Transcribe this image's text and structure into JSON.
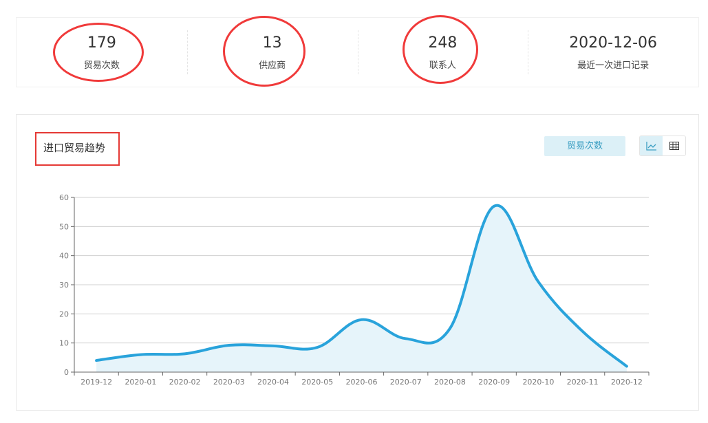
{
  "stats": [
    {
      "value": "179",
      "label": "贸易次数"
    },
    {
      "value": "13",
      "label": "供应商"
    },
    {
      "value": "248",
      "label": "联系人"
    },
    {
      "value": "2020-12-06",
      "label": "最近一次进口记录"
    }
  ],
  "chart_panel": {
    "title": "进口贸易趋势",
    "metric_button": "贸易次数",
    "view_toggle": [
      "line-chart-icon",
      "table-icon"
    ],
    "active_view": "line-chart-icon"
  },
  "colors": {
    "line": "#29a3db",
    "area": "#e6f4fa",
    "highlight": "#f03a3a"
  },
  "chart_data": {
    "type": "area",
    "categories": [
      "2019-12",
      "2020-01",
      "2020-02",
      "2020-03",
      "2020-04",
      "2020-05",
      "2020-06",
      "2020-07",
      "2020-08",
      "2020-09",
      "2020-10",
      "2020-11",
      "2020-12"
    ],
    "values": [
      4,
      6,
      6.3,
      9.2,
      9,
      8.5,
      18,
      11.5,
      15,
      57,
      31,
      14,
      2
    ],
    "ylim": [
      0,
      60
    ],
    "yticks": [
      0,
      10,
      20,
      30,
      40,
      50,
      60
    ],
    "grid": true,
    "smooth": true
  }
}
